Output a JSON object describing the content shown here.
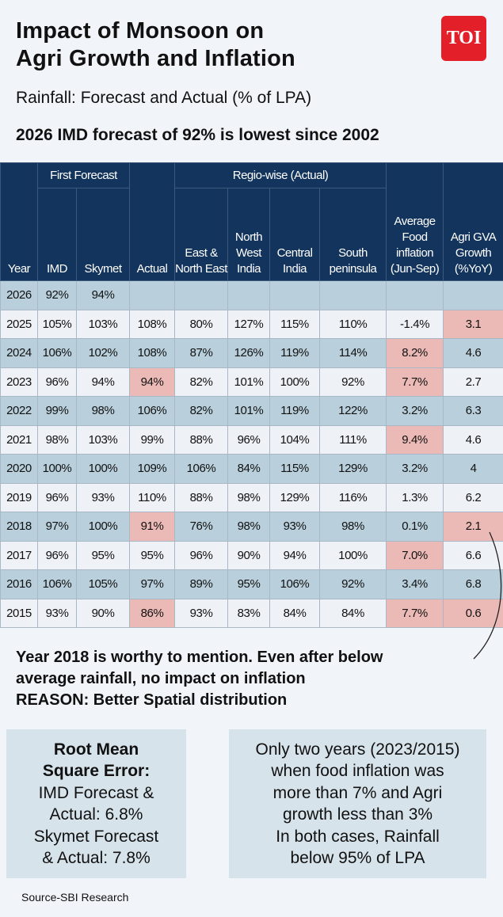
{
  "title_line1": "Impact of Monsoon on",
  "title_line2": "Agri Growth and Inflation",
  "logo": "TOI",
  "subtitle": "Rainfall: Forecast and Actual (% of LPA)",
  "headline": "2026 IMD forecast of 92% is lowest since 2002",
  "colors": {
    "header": "#13345c",
    "row_blue": "#b9d0dc",
    "row_light": "#eef1f6",
    "highlight": "#ecbab6",
    "logo": "#e3202a"
  },
  "chart_data": {
    "type": "table",
    "group_headers": {
      "first_forecast": "First Forecast",
      "regio_wise": "Regio-wise (Actual)"
    },
    "columns": [
      "Year",
      "IMD",
      "Skymet",
      "Actual",
      "East & North East",
      "North West India",
      "Central India",
      "South peninsula",
      "Average Food inflation (Jun-Sep)",
      "Agri GVA Growth (%YoY)"
    ],
    "rows": [
      {
        "cells": [
          "2026",
          "92%",
          "94%",
          "",
          "",
          "",
          "",
          "",
          "",
          ""
        ],
        "highlight": []
      },
      {
        "cells": [
          "2025",
          "105%",
          "103%",
          "108%",
          "80%",
          "127%",
          "115%",
          "110%",
          "-1.4%",
          "3.1"
        ],
        "highlight": [
          9
        ]
      },
      {
        "cells": [
          "2024",
          "106%",
          "102%",
          "108%",
          "87%",
          "126%",
          "119%",
          "114%",
          "8.2%",
          "4.6"
        ],
        "highlight": [
          8
        ]
      },
      {
        "cells": [
          "2023",
          "96%",
          "94%",
          "94%",
          "82%",
          "101%",
          "100%",
          "92%",
          "7.7%",
          "2.7"
        ],
        "highlight": [
          3,
          8
        ]
      },
      {
        "cells": [
          "2022",
          "99%",
          "98%",
          "106%",
          "82%",
          "101%",
          "119%",
          "122%",
          "3.2%",
          "6.3"
        ],
        "highlight": []
      },
      {
        "cells": [
          "2021",
          "98%",
          "103%",
          "99%",
          "88%",
          "96%",
          "104%",
          "111%",
          "9.4%",
          "4.6"
        ],
        "highlight": [
          8
        ]
      },
      {
        "cells": [
          "2020",
          "100%",
          "100%",
          "109%",
          "106%",
          "84%",
          "115%",
          "129%",
          "3.2%",
          "4"
        ],
        "highlight": []
      },
      {
        "cells": [
          "2019",
          "96%",
          "93%",
          "110%",
          "88%",
          "98%",
          "129%",
          "116%",
          "1.3%",
          "6.2"
        ],
        "highlight": []
      },
      {
        "cells": [
          "2018",
          "97%",
          "100%",
          "91%",
          "76%",
          "98%",
          "93%",
          "98%",
          "0.1%",
          "2.1"
        ],
        "highlight": [
          3,
          9
        ]
      },
      {
        "cells": [
          "2017",
          "96%",
          "95%",
          "95%",
          "96%",
          "90%",
          "94%",
          "100%",
          "7.0%",
          "6.6"
        ],
        "highlight": [
          8
        ]
      },
      {
        "cells": [
          "2016",
          "106%",
          "105%",
          "97%",
          "89%",
          "95%",
          "106%",
          "92%",
          "3.4%",
          "6.8"
        ],
        "highlight": []
      },
      {
        "cells": [
          "2015",
          "93%",
          "90%",
          "86%",
          "93%",
          "83%",
          "84%",
          "84%",
          "7.7%",
          "0.6"
        ],
        "highlight": [
          3,
          8,
          9
        ]
      }
    ]
  },
  "note": [
    "Year 2018 is worthy to mention. Even after below",
    "average rainfall, no impact on inflation",
    "REASON: Better Spatial distribution"
  ],
  "box1": {
    "heading1": "Root Mean",
    "heading2": "Square Error:",
    "lines": [
      "IMD Forecast &",
      "Actual: 6.8%",
      "Skymet Forecast",
      "& Actual: 7.8%"
    ]
  },
  "box2": {
    "lines": [
      "Only two years (2023/2015)",
      "when food inflation was",
      "more than 7% and Agri",
      "growth less than 3%",
      "In both cases, Rainfall",
      "below 95% of LPA"
    ]
  },
  "source": "Source-SBI Research"
}
